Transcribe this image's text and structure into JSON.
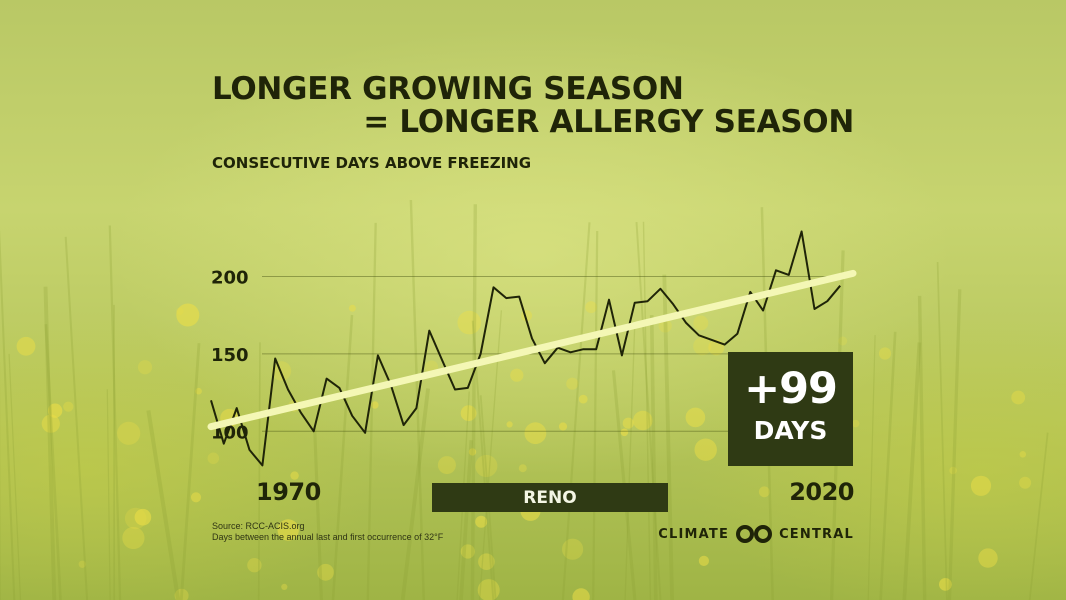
{
  "title_line1": "LONGER GROWING SEASON",
  "title_line2": "= LONGER ALLERGY SEASON",
  "subtitle": "CONSECUTIVE DAYS ABOVE FREEZING",
  "location": "RENO",
  "change": {
    "value": "+99",
    "unit": "DAYS"
  },
  "source": "Source: RCC-ACIS.org",
  "note": "Days between the annual last and first occurrence of 32°F",
  "logo": {
    "word1": "CLIMATE",
    "word2": "CENTRAL",
    "icon": "climate-central-logo-icon"
  },
  "colors": {
    "line": "#1f2408",
    "trend": "#f4f7b5",
    "box": "#2f3a14",
    "text": "#1f2408",
    "background": "#c4d16a"
  },
  "chart_data": {
    "type": "line",
    "title": "LONGER GROWING SEASON = LONGER ALLERGY SEASON",
    "subtitle": "CONSECUTIVE DAYS ABOVE FREEZING",
    "xlabel": "",
    "ylabel": "",
    "x_labels": [
      "1970",
      "2020"
    ],
    "y_ticks": [
      100,
      150,
      200
    ],
    "ylim": [
      75,
      230
    ],
    "xlim": [
      1970,
      2020
    ],
    "grid": true,
    "series": [
      {
        "x": [
          1970,
          1971,
          1972,
          1973,
          1974,
          1975,
          1976,
          1977,
          1978,
          1979,
          1980,
          1981,
          1982,
          1983,
          1984,
          1985,
          1986,
          1987,
          1988,
          1989,
          1990,
          1991,
          1992,
          1993,
          1994,
          1995,
          1996,
          1997,
          1998,
          1999,
          2000,
          2001,
          2002,
          2003,
          2004,
          2005,
          2006,
          2007,
          2008,
          2009,
          2010,
          2011,
          2012,
          2013,
          2014,
          2015,
          2016,
          2017,
          2018,
          2019
        ],
        "values": [
          120,
          92,
          115,
          88,
          78,
          147,
          127,
          112,
          100,
          134,
          128,
          110,
          99,
          149,
          130,
          104,
          115,
          165,
          146,
          127,
          128,
          150,
          193,
          186,
          187,
          160,
          144,
          154,
          151,
          153,
          153,
          185,
          149,
          183,
          184,
          192,
          182,
          170,
          162,
          159,
          156,
          163,
          190,
          178,
          204,
          201,
          229,
          179,
          184,
          194
        ]
      }
    ],
    "trend": {
      "x": [
        1970,
        2020
      ],
      "y": [
        103,
        202
      ]
    }
  }
}
